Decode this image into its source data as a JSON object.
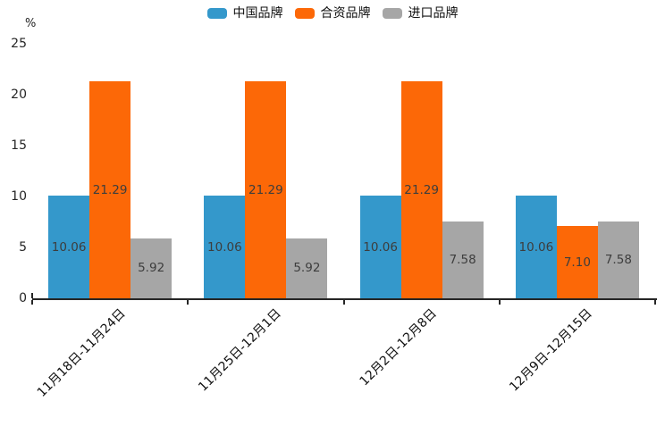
{
  "chart_data": {
    "type": "bar",
    "title": "",
    "unit_label": "%",
    "categories": [
      "11月18日-11月24日",
      "11月25日-12月1日",
      "12月2日-12月8日",
      "12月9日-12月15日"
    ],
    "series": [
      {
        "name": "中国品牌",
        "color": "#3498cb",
        "values": [
          10.06,
          10.06,
          10.06,
          10.06
        ]
      },
      {
        "name": "合资品牌",
        "color": "#fc6807",
        "values": [
          21.29,
          21.29,
          21.29,
          7.1
        ]
      },
      {
        "name": "进口品牌",
        "color": "#a6a6a6",
        "values": [
          5.92,
          5.92,
          7.58,
          7.58
        ]
      }
    ],
    "value_labels": [
      [
        "10.06",
        "10.06",
        "10.06",
        "10.06"
      ],
      [
        "21.29",
        "21.29",
        "21.29",
        "7.10"
      ],
      [
        "5.92",
        "5.92",
        "7.58",
        "7.58"
      ]
    ],
    "y_ticks": [
      0,
      5,
      10,
      15,
      20,
      25
    ],
    "ylim": [
      0,
      25
    ],
    "grid": false,
    "legend_position": "top-center",
    "bar_label_color": "#3d3d3d",
    "axis_color": "#262626",
    "xlabel": "",
    "ylabel": "%"
  }
}
